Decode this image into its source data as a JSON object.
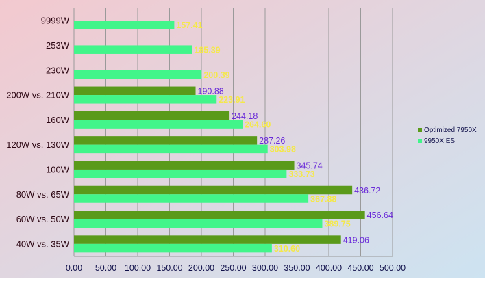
{
  "chart_data": {
    "type": "bar",
    "orientation": "horizontal",
    "categories": [
      "9999W",
      "253W",
      "230W",
      "200W vs. 210W",
      "160W",
      "120W vs. 130W",
      "100W",
      "80W vs. 65W",
      "60W vs. 50W",
      "40W vs. 35W"
    ],
    "series": [
      {
        "name": "Optimized 7950X",
        "color": "#5a9a1a",
        "label_color": "#6a2ad8",
        "values": [
          null,
          null,
          null,
          190.88,
          244.18,
          287.26,
          345.74,
          436.72,
          456.64,
          419.06
        ],
        "labels": [
          "",
          "",
          "",
          "190.88",
          "244.18",
          "287.26",
          "345.74",
          "436.72",
          "456.64",
          "419.06"
        ]
      },
      {
        "name": "9950X ES",
        "color": "#42f58a",
        "label_color": "#f4e84a",
        "values": [
          157.41,
          185.39,
          200.39,
          223.91,
          264.6,
          303.98,
          333.73,
          367.88,
          389.75,
          310.6
        ],
        "labels": [
          "157.41",
          "185.39",
          "200.39",
          "223.91",
          "264.60",
          "303.98",
          "333.73",
          "367.88",
          "389.75",
          "310.60"
        ]
      }
    ],
    "title": "",
    "xlabel": "",
    "ylabel": "",
    "xlim": [
      0,
      500
    ],
    "xticks": [
      "0.00",
      "50.00",
      "100.00",
      "150.00",
      "200.00",
      "250.00",
      "300.00",
      "350.00",
      "400.00",
      "450.00",
      "500.00"
    ],
    "grid": true,
    "legend": "right"
  },
  "colors": {
    "background_start": "#f3c9cf",
    "background_end": "#cde3f1",
    "grid": "#9a9a9a",
    "axis_text": "#10104a",
    "category_text": "#2a0410"
  }
}
